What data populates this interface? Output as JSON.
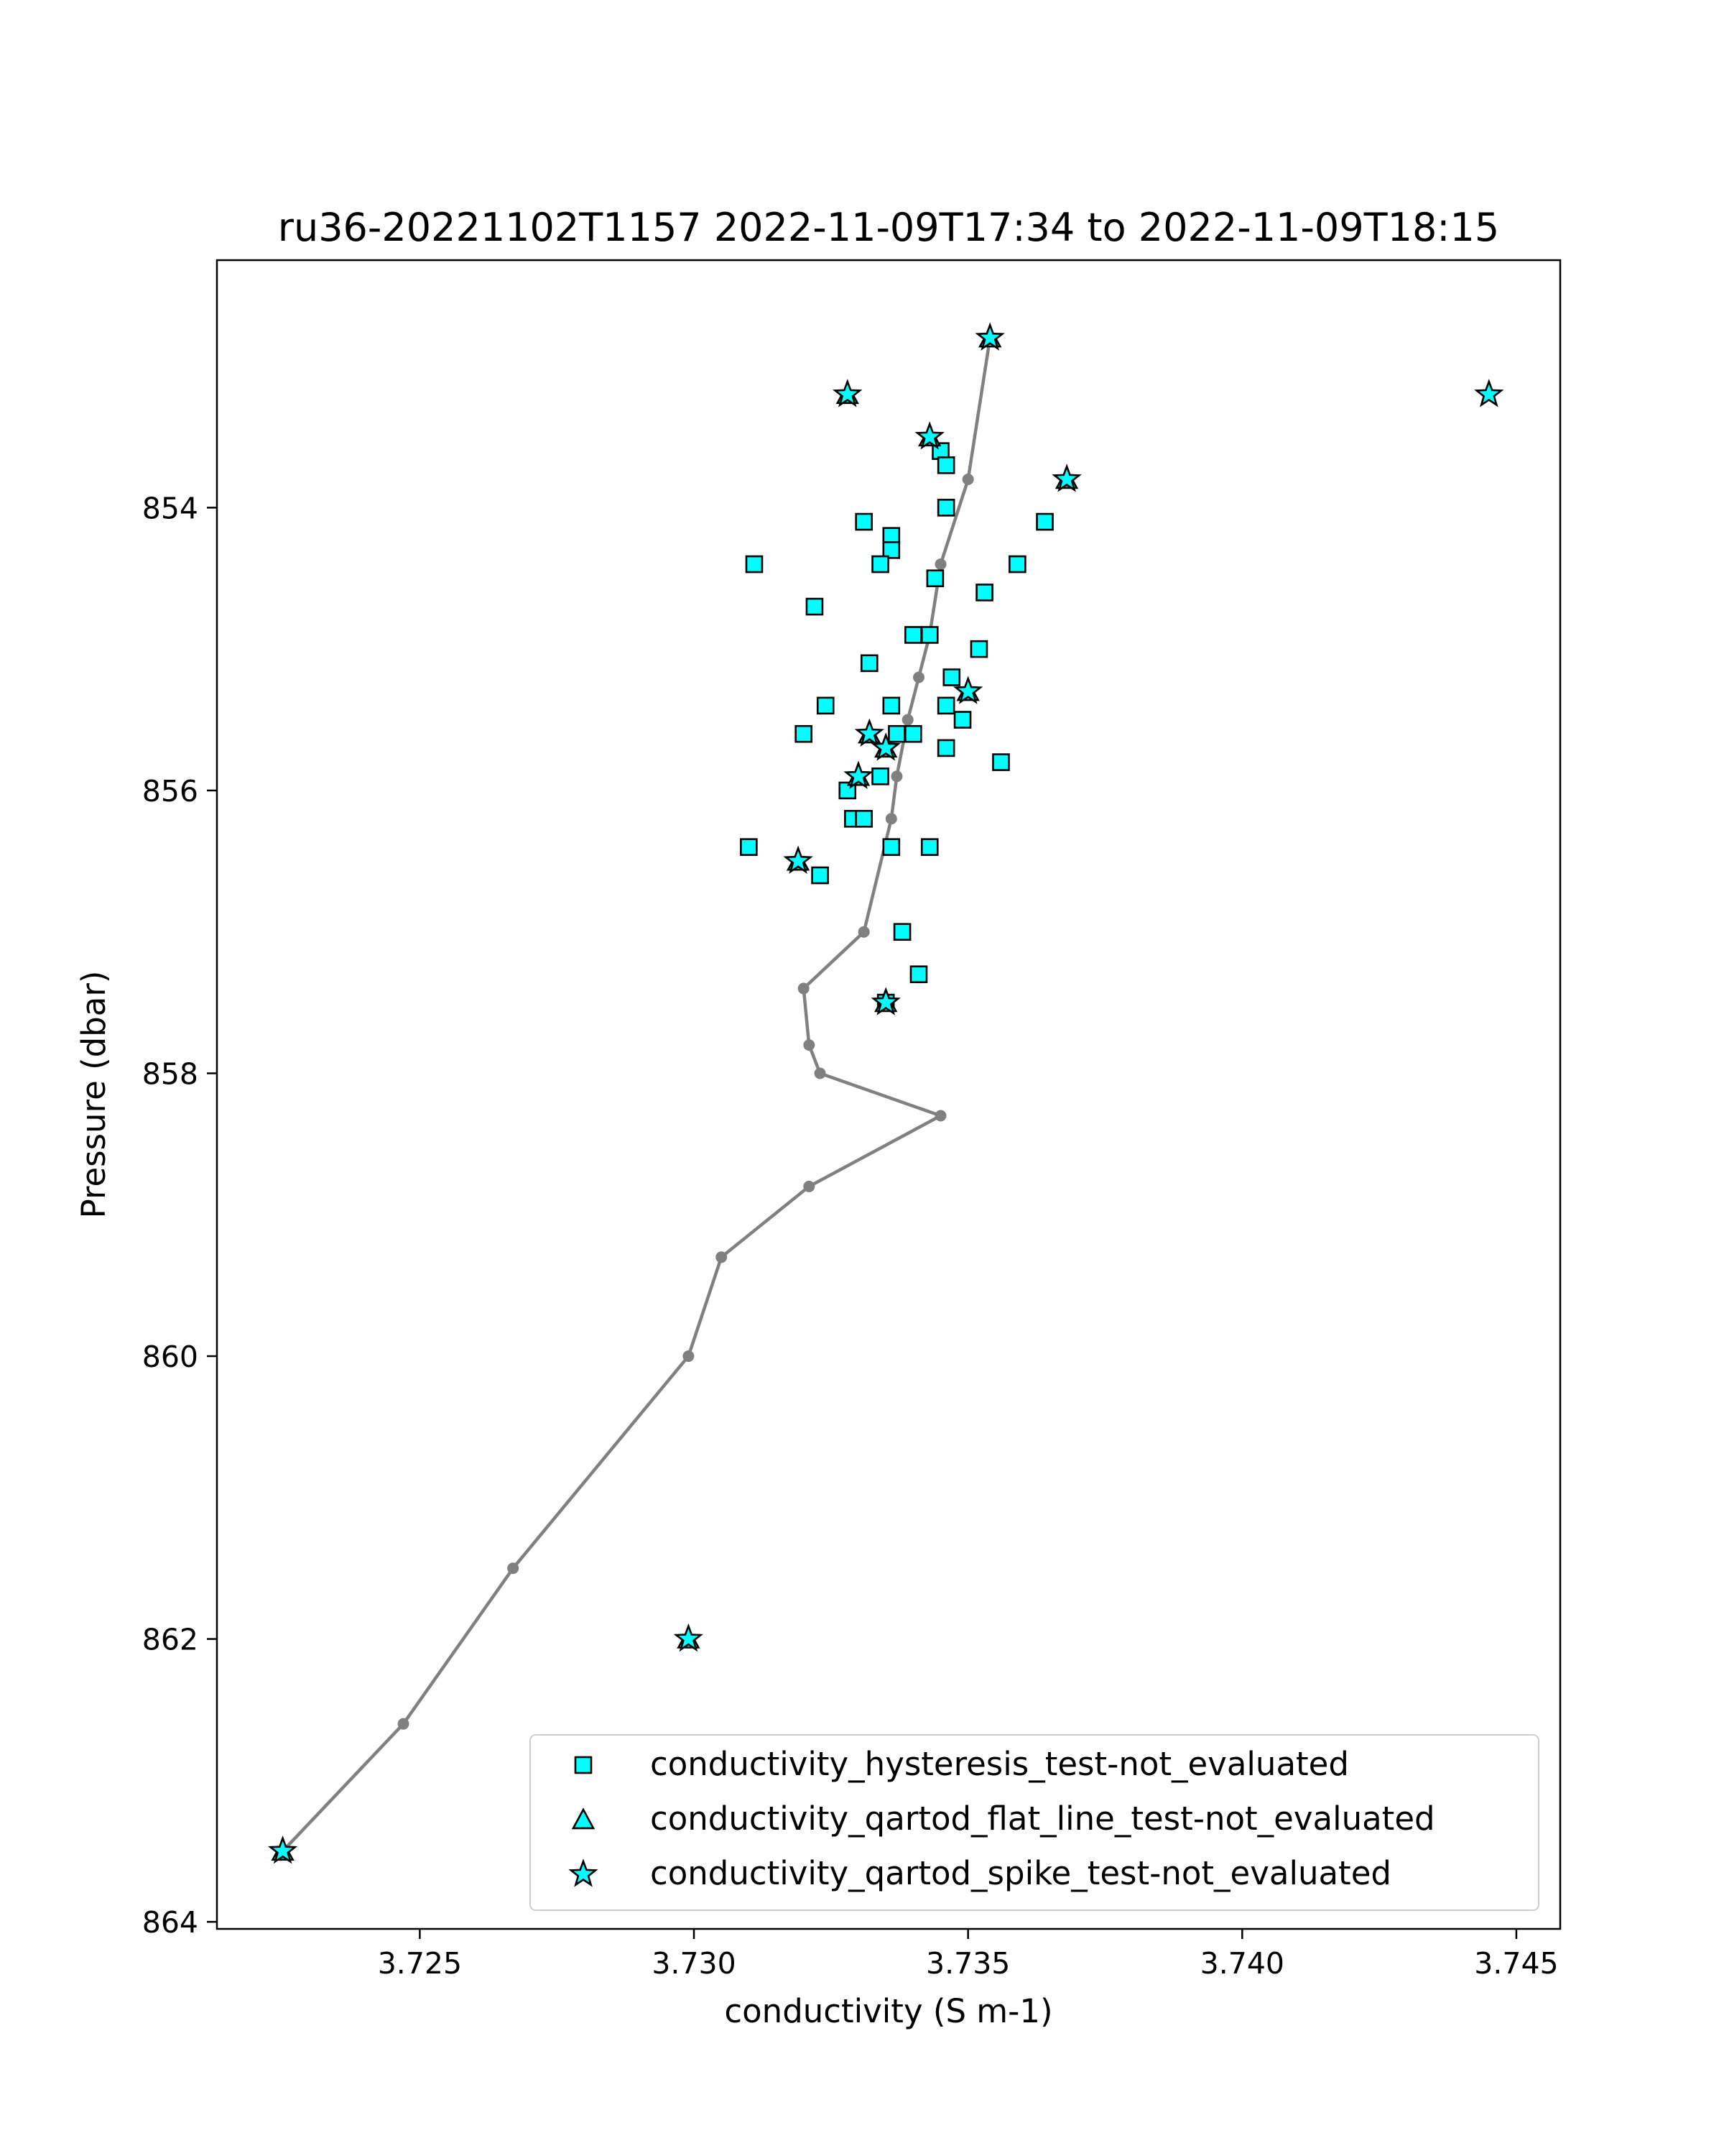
{
  "chart_data": {
    "type": "scatter",
    "title": "ru36-20221102T1157 2022-11-09T17:34 to 2022-11-09T18:15",
    "xlabel": "conductivity (S m-1)",
    "ylabel": "Pressure (dbar)",
    "xlim": [
      3.7213,
      3.7458
    ],
    "ylim": [
      864.05,
      852.25
    ],
    "y_inverted": true,
    "grid": false,
    "legend_position": "lower right",
    "x_ticks": [
      "3.725",
      "3.730",
      "3.735",
      "3.740",
      "3.745"
    ],
    "x_tick_values": [
      3.725,
      3.73,
      3.735,
      3.74,
      3.745
    ],
    "y_ticks": [
      "854",
      "856",
      "858",
      "860",
      "862",
      "864"
    ],
    "y_tick_values": [
      854,
      856,
      858,
      860,
      862,
      864
    ],
    "colors": {
      "line": "#808080",
      "marker_fill": "#00ffff",
      "marker_edge": "#000000"
    },
    "profile": {
      "x": [
        3.7225,
        3.7247,
        3.7267,
        3.7299,
        3.7305,
        3.7321,
        3.7345,
        3.7323,
        3.7321,
        3.732,
        3.7331,
        3.7336,
        3.7337,
        3.7339,
        3.7341,
        3.7343,
        3.7345,
        3.735,
        3.7354
      ],
      "y": [
        863.5,
        862.6,
        861.5,
        860.0,
        859.3,
        858.8,
        858.3,
        858.0,
        857.8,
        857.4,
        857.0,
        856.2,
        855.9,
        855.5,
        855.2,
        854.9,
        854.4,
        853.8,
        852.8
      ]
    },
    "series": [
      {
        "name": "conductivity_hysteresis_test-not_evaluated",
        "marker": "square",
        "x": [
          3.7345,
          3.7346,
          3.7336,
          3.7346,
          3.7331,
          3.7336,
          3.7311,
          3.7334,
          3.7322,
          3.7344,
          3.7353,
          3.7364,
          3.7359,
          3.734,
          3.7343,
          3.7352,
          3.7347,
          3.7332,
          3.7324,
          3.7336,
          3.7346,
          3.7349,
          3.732,
          3.734,
          3.7337,
          3.7356,
          3.7346,
          3.7328,
          3.7334,
          3.7329,
          3.7331,
          3.731,
          3.7336,
          3.7343,
          3.7323,
          3.7338,
          3.7341,
          3.7335
        ],
        "y": [
          853.6,
          853.7,
          854.2,
          854.0,
          854.1,
          854.3,
          854.4,
          854.4,
          854.7,
          854.5,
          854.6,
          854.1,
          854.4,
          854.9,
          854.9,
          855.0,
          855.2,
          855.1,
          855.4,
          855.4,
          855.4,
          855.5,
          855.6,
          855.6,
          855.6,
          855.8,
          855.7,
          856.0,
          855.9,
          856.2,
          856.2,
          856.4,
          856.4,
          856.4,
          856.6,
          857.0,
          857.3,
          857.5
        ]
      },
      {
        "name": "conductivity_qartod_flat_line_test-not_evaluated",
        "marker": "triangle",
        "x": [
          3.7354,
          3.7328,
          3.7368,
          3.7343,
          3.735,
          3.7332,
          3.7335,
          3.733,
          3.7319,
          3.7335,
          3.7299,
          3.7225
        ],
        "y": [
          852.8,
          853.2,
          853.8,
          853.5,
          855.3,
          855.6,
          855.7,
          855.9,
          856.5,
          857.5,
          862.0,
          863.5
        ]
      },
      {
        "name": "conductivity_qartod_spike_test-not_evaluated",
        "marker": "star",
        "x": [
          3.7354,
          3.7328,
          3.7445,
          3.7343,
          3.7368,
          3.735,
          3.7332,
          3.7335,
          3.733,
          3.7319,
          3.7335,
          3.7299,
          3.7225
        ],
        "y": [
          852.8,
          853.2,
          853.2,
          853.5,
          853.8,
          855.3,
          855.6,
          855.7,
          855.9,
          856.5,
          857.5,
          862.0,
          863.5
        ]
      }
    ]
  }
}
